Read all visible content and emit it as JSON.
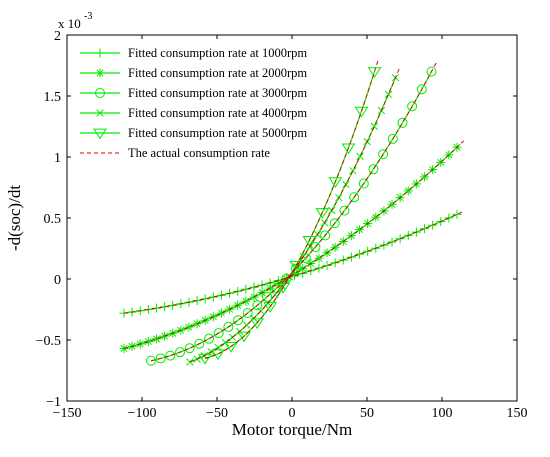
{
  "chart_data": {
    "type": "line",
    "xlabel": "Motor torque/Nm",
    "ylabel": "-d(soc)/dt",
    "y_multiplier_label": "x 10",
    "y_multiplier_exponent": "-3",
    "xlim": [
      -150,
      150
    ],
    "ylim": [
      -1,
      2
    ],
    "xticks": [
      -150,
      -100,
      -50,
      0,
      50,
      100,
      150
    ],
    "yticks": [
      -1,
      -0.5,
      0,
      0.5,
      1,
      1.5,
      2
    ],
    "xtick_labels": [
      "−150",
      "−100",
      "−50",
      "0",
      "50",
      "100",
      "150"
    ],
    "ytick_labels": [
      "−1",
      "−0.5",
      "0",
      "0.5",
      "1",
      "1.5",
      "2"
    ],
    "grid": false,
    "legend_position": "top-left",
    "series": [
      {
        "name": "Fitted consumption rate at 1000rpm",
        "color": "#00ee00",
        "marker": "plus",
        "x_start": -112,
        "x_end": 110,
        "n_points": 42,
        "actual_x": [
          -112,
          0,
          110
        ],
        "actual_y": [
          -0.28,
          0.02,
          0.53
        ]
      },
      {
        "name": "Fitted consumption rate at 2000rpm",
        "color": "#00ee00",
        "marker": "star",
        "x_start": -112,
        "x_end": 110,
        "n_points": 42,
        "actual_x": [
          -112,
          0,
          110
        ],
        "actual_y": [
          -0.57,
          0.03,
          1.08
        ]
      },
      {
        "name": "Fitted consumption rate at 3000rpm",
        "color": "#00ee00",
        "marker": "circle",
        "x_start": -94,
        "x_end": 93,
        "n_points": 30,
        "actual_x": [
          -94,
          0,
          93
        ],
        "actual_y": [
          -0.67,
          0.05,
          1.7
        ]
      },
      {
        "name": "Fitted consumption rate at 4000rpm",
        "color": "#00ee00",
        "marker": "x",
        "x_start": -68,
        "x_end": 69,
        "n_points": 30,
        "actual_x": [
          -68,
          0,
          69
        ],
        "actual_y": [
          -0.68,
          0.05,
          1.65
        ]
      },
      {
        "name": "Fitted consumption rate at 5000rpm",
        "color": "#00ee00",
        "marker": "triangle-down",
        "x_start": -58,
        "x_end": 55,
        "n_points": 14,
        "actual_x": [
          -58,
          0,
          55
        ],
        "actual_y": [
          -0.65,
          0.05,
          1.7
        ]
      }
    ],
    "actual_series_name": "The actual consumption rate",
    "actual_color": "#dd0000"
  }
}
